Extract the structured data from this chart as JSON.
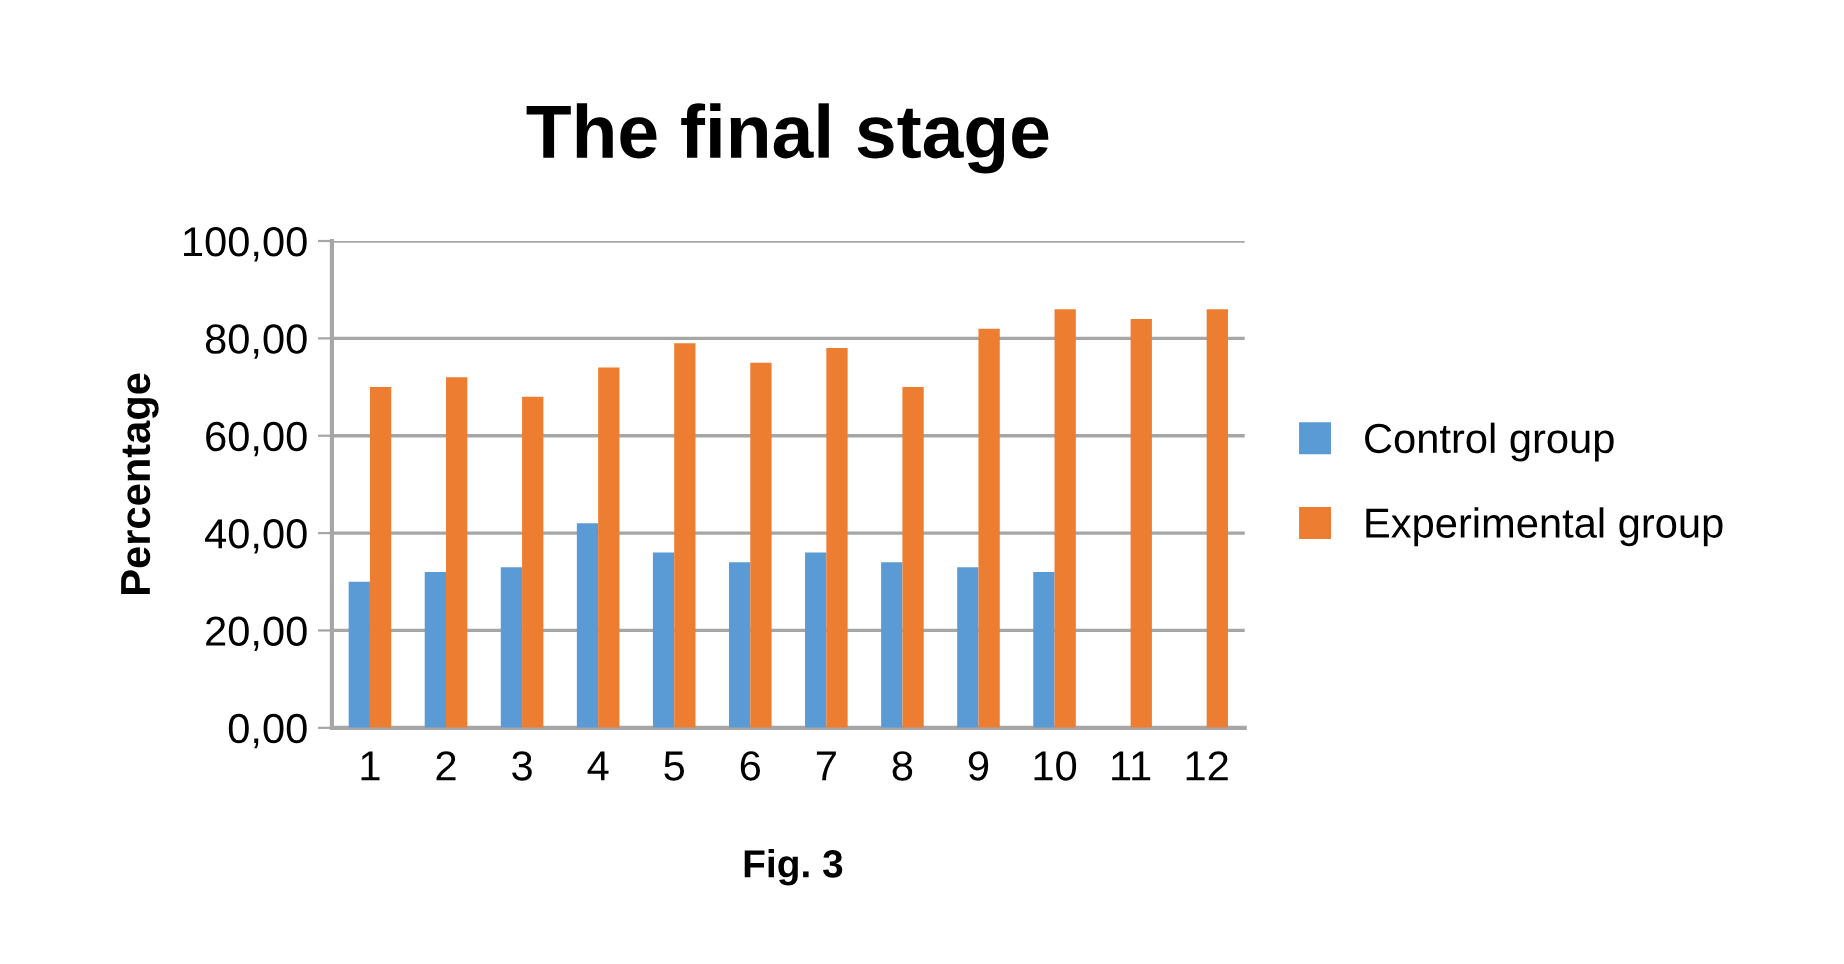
{
  "chart_data": {
    "type": "bar",
    "title": "The final stage",
    "ylabel": "Percentage",
    "categories": [
      "1",
      "2",
      "3",
      "4",
      "5",
      "6",
      "7",
      "8",
      "9",
      "10",
      "11",
      "12"
    ],
    "series": [
      {
        "name": "Control group",
        "color": "#5b9bd5",
        "values": [
          30,
          32,
          33,
          42,
          36,
          34,
          36,
          34,
          33,
          32,
          null,
          null
        ]
      },
      {
        "name": "Experimental group",
        "color": "#ed7d31",
        "values": [
          70,
          72,
          68,
          74,
          79,
          75,
          78,
          70,
          82,
          86,
          84,
          86
        ]
      }
    ],
    "ylim": [
      0,
      100
    ],
    "yticks": [
      {
        "value": 0,
        "label": "0,00"
      },
      {
        "value": 20,
        "label": "20,00"
      },
      {
        "value": 40,
        "label": "40,00"
      },
      {
        "value": 60,
        "label": "60,00"
      },
      {
        "value": 80,
        "label": "80,00"
      },
      {
        "value": 100,
        "label": "100,00"
      }
    ],
    "grid": "y",
    "legend": "right",
    "annotations": [
      "Fig. 3"
    ]
  }
}
